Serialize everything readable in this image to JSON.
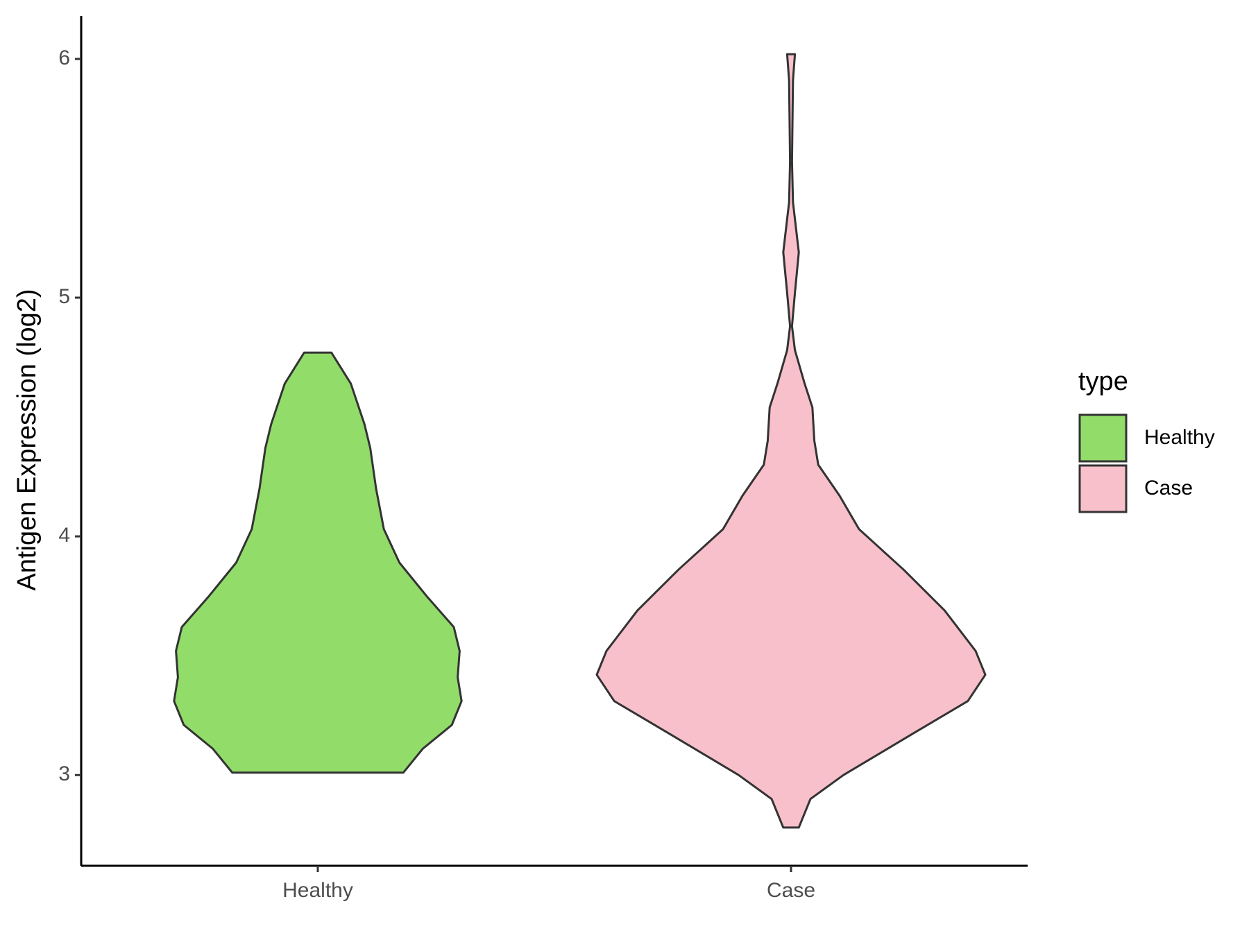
{
  "chart_data": {
    "type": "violin",
    "y_label": "Antigen Expression (log2)",
    "categories": [
      "Healthy",
      "Case"
    ],
    "legend_title": "type",
    "legend": "right",
    "ylim": [
      2.62,
      6.18
    ],
    "yticks": [
      3,
      4,
      5,
      6
    ],
    "series": [
      {
        "name": "Healthy",
        "color": "#92DC6A",
        "y": [
          4.77,
          4.64,
          4.47,
          4.37,
          4.2,
          4.03,
          3.89,
          3.75,
          3.62,
          3.52,
          3.41,
          3.31,
          3.21,
          3.11,
          3.01
        ],
        "half_width": [
          0.07,
          0.17,
          0.24,
          0.27,
          0.3,
          0.34,
          0.42,
          0.56,
          0.7,
          0.73,
          0.72,
          0.74,
          0.69,
          0.54,
          0.44
        ]
      },
      {
        "name": "Case",
        "color": "#F8C0CB",
        "y": [
          6.02,
          5.91,
          5.57,
          5.4,
          5.19,
          5.02,
          4.88,
          4.78,
          4.64,
          4.54,
          4.4,
          4.3,
          4.17,
          4.03,
          3.86,
          3.69,
          3.52,
          3.42,
          3.31,
          3.17,
          3.0,
          2.9,
          2.78
        ],
        "half_width": [
          0.02,
          0.01,
          0.005,
          0.01,
          0.04,
          0.02,
          0.005,
          0.02,
          0.07,
          0.11,
          0.12,
          0.14,
          0.25,
          0.35,
          0.58,
          0.79,
          0.95,
          1.0,
          0.91,
          0.62,
          0.27,
          0.1,
          0.04
        ]
      }
    ]
  }
}
